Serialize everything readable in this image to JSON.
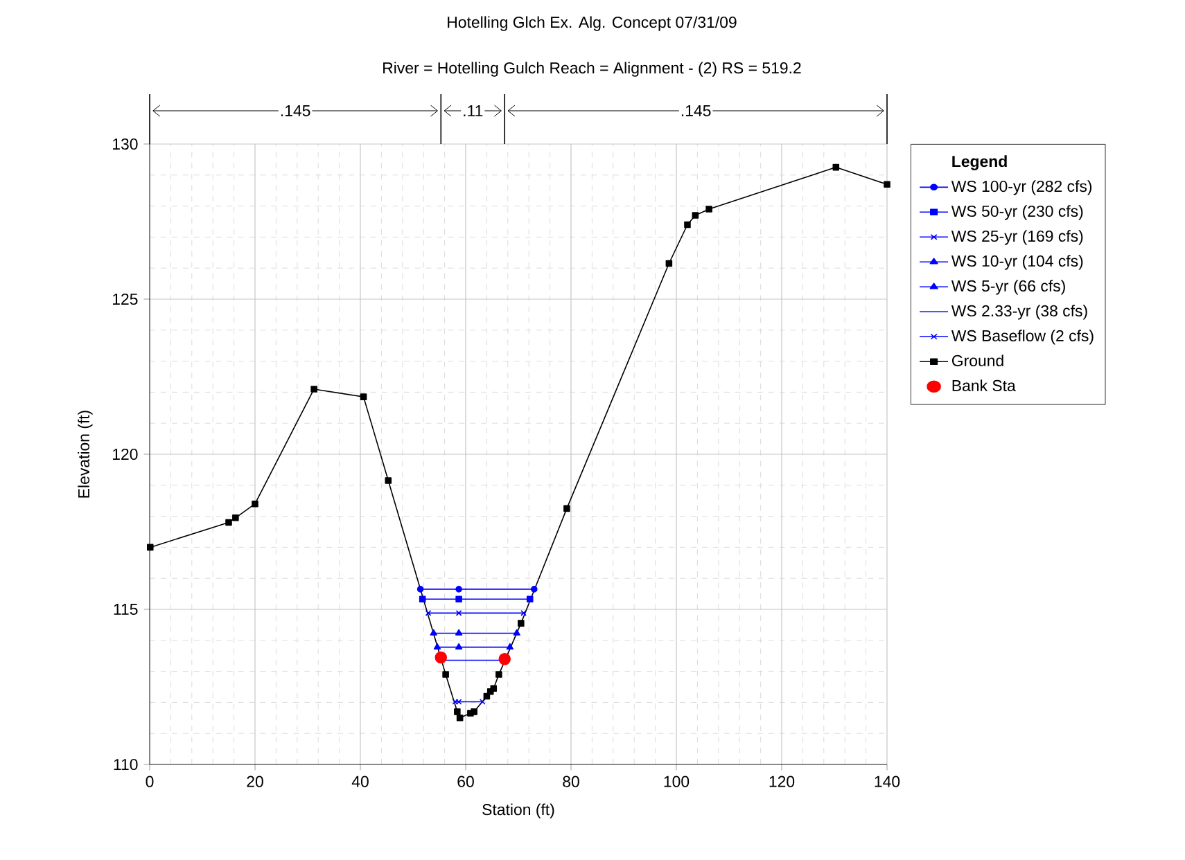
{
  "chart_data": {
    "type": "line",
    "title": "Hotelling Glch Ex. Alg. Concept 07/31/09",
    "subtitle": "River = Hotelling Gulch   Reach = Alignment - (2)      RS = 519.2",
    "xlabel": "Station (ft)",
    "ylabel": "Elevation (ft)",
    "legend_title": "Legend",
    "legend": "right",
    "grid": true,
    "xlim": [
      0,
      140
    ],
    "ylim": [
      110,
      130
    ],
    "xticks": [
      0,
      20,
      40,
      60,
      80,
      100,
      120,
      140
    ],
    "yticks": [
      110,
      115,
      120,
      125,
      130
    ],
    "annotations": [
      ".145",
      ".11",
      ".145"
    ],
    "series": [
      {
        "name": "WS 100-yr (282 cfs)",
        "color": "#0000ff",
        "marker": "circle",
        "x": [
          51.4,
          58.7,
          73.0
        ],
        "values": [
          115.65,
          115.65,
          115.65
        ]
      },
      {
        "name": "WS 50-yr (230 cfs)",
        "color": "#0000ff",
        "marker": "square",
        "x": [
          51.8,
          58.7,
          72.2
        ],
        "values": [
          115.33,
          115.33,
          115.33
        ]
      },
      {
        "name": "WS 25-yr (169 cfs)",
        "color": "#0000ff",
        "marker": "cross",
        "x": [
          52.9,
          58.7,
          71.0
        ],
        "values": [
          114.88,
          114.88,
          114.88
        ]
      },
      {
        "name": "WS 10-yr (104 cfs)",
        "color": "#0000ff",
        "marker": "triangle",
        "x": [
          53.9,
          58.7,
          69.7
        ],
        "values": [
          114.23,
          114.23,
          114.23
        ]
      },
      {
        "name": "WS 5-yr (66 cfs)",
        "color": "#0000ff",
        "marker": "triangle",
        "x": [
          54.6,
          58.7,
          68.4
        ],
        "values": [
          113.78,
          113.78,
          113.78
        ]
      },
      {
        "name": "WS 2.33-yr (38 cfs)",
        "color": "#0000ff",
        "marker": "none",
        "x": [
          55.3,
          67.5
        ],
        "values": [
          113.36,
          113.36
        ]
      },
      {
        "name": "WS Baseflow (2 cfs)",
        "color": "#0000ff",
        "marker": "cross",
        "x": [
          58.0,
          58.7,
          63.2
        ],
        "values": [
          112.02,
          112.02,
          112.02
        ]
      },
      {
        "name": "Ground",
        "color": "#000000",
        "marker": "square",
        "x": [
          0.1,
          15.0,
          16.3,
          20.0,
          31.2,
          40.6,
          45.3,
          56.2,
          58.4,
          58.9,
          60.9,
          61.6,
          64.0,
          64.7,
          65.3,
          66.3,
          70.5,
          79.2,
          98.6,
          102.1,
          103.6,
          106.2,
          130.3,
          140.0
        ],
        "values": [
          117.0,
          117.8,
          117.95,
          118.4,
          122.1,
          121.85,
          119.15,
          112.9,
          111.7,
          111.5,
          111.65,
          111.7,
          112.2,
          112.35,
          112.45,
          112.9,
          114.55,
          118.25,
          126.15,
          127.4,
          127.7,
          127.9,
          129.25,
          128.7
        ]
      },
      {
        "name": "Bank Sta",
        "type": "scatter",
        "color": "#ff0000",
        "marker": "circle",
        "x": [
          55.3,
          67.4
        ],
        "values": [
          113.45,
          113.4
        ]
      }
    ]
  }
}
